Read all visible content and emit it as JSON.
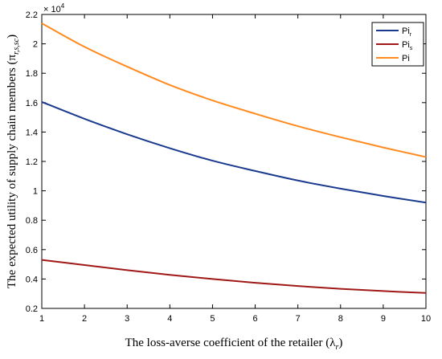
{
  "chart_data": {
    "type": "line",
    "xlabel": "The loss-averse coefficient of the retailer  (λ",
    "xlabel_sub": "r",
    "xlabel_close": ")",
    "ylabel": "The expected utility of supply chain members  (π",
    "ylabel_sub": "r,s,sc",
    "ylabel_close": ")",
    "y_multiplier_base": "× 10",
    "y_multiplier_exp": "4",
    "xlim": [
      1,
      10
    ],
    "ylim": [
      0.2,
      2.2
    ],
    "xticks": [
      "1",
      "2",
      "3",
      "4",
      "5",
      "6",
      "7",
      "8",
      "9",
      "10"
    ],
    "yticks": [
      "0.2",
      "0.4",
      "0.6",
      "0.8",
      "1",
      "1.2",
      "1.4",
      "1.6",
      "1.8",
      "2",
      "2.2"
    ],
    "grid": false,
    "legend_position": "top-right",
    "x": [
      1,
      2,
      3,
      4,
      5,
      6,
      7,
      8,
      9,
      10
    ],
    "series": [
      {
        "name": "Pi",
        "name_sub": "r",
        "color": "#1a3a8f",
        "values": [
          1.605,
          1.49,
          1.385,
          1.29,
          1.205,
          1.135,
          1.07,
          1.015,
          0.965,
          0.92
        ]
      },
      {
        "name": "Pi",
        "name_sub": "s",
        "color": "#a01818",
        "values": [
          0.53,
          0.495,
          0.46,
          0.428,
          0.4,
          0.374,
          0.352,
          0.333,
          0.318,
          0.305
        ]
      },
      {
        "name": "Pi",
        "name_sub": "",
        "color": "#ff8a1e",
        "values": [
          2.14,
          1.98,
          1.845,
          1.72,
          1.615,
          1.525,
          1.44,
          1.365,
          1.295,
          1.23
        ]
      }
    ]
  }
}
